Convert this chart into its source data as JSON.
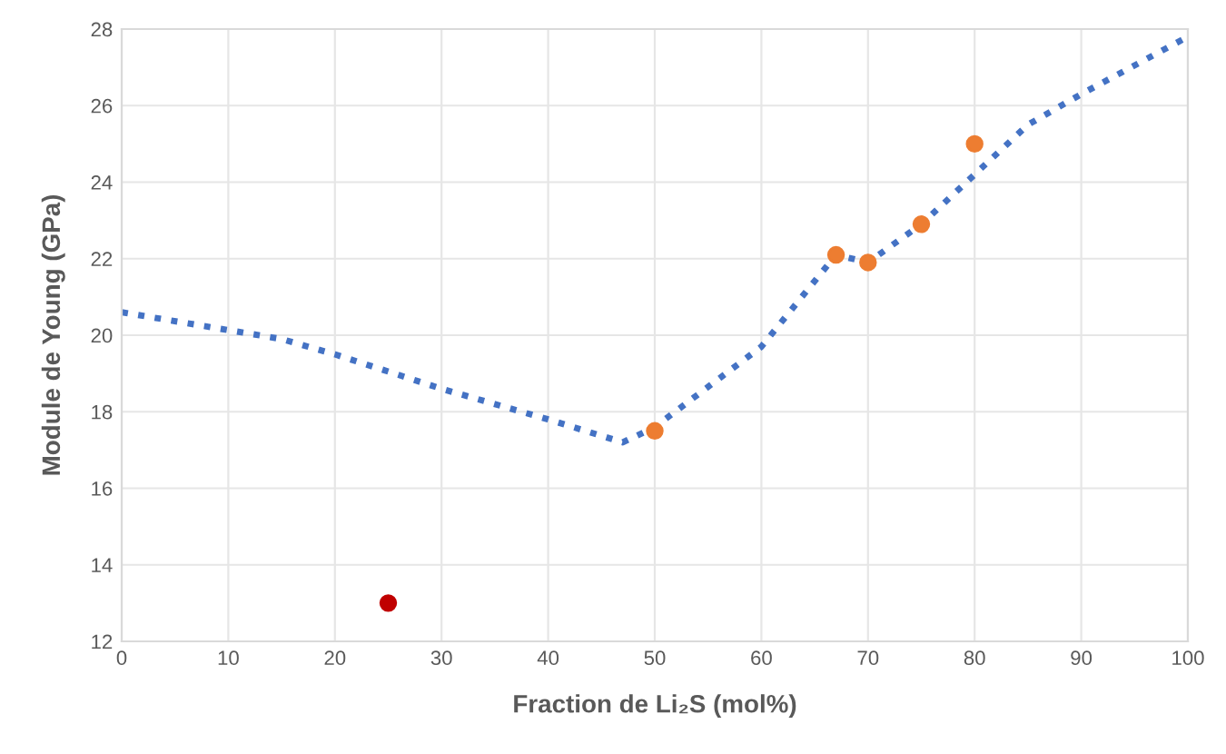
{
  "chart_data": {
    "type": "scatter",
    "xlabel": "Fraction de Li₂S (mol%)",
    "ylabel": "Module de Young (GPa)",
    "xlim": [
      0,
      100
    ],
    "xticks": [
      0,
      10,
      20,
      30,
      40,
      50,
      60,
      70,
      80,
      90,
      100
    ],
    "ylim": [
      12,
      28
    ],
    "yticks": [
      12,
      14,
      16,
      18,
      20,
      22,
      24,
      26,
      28
    ],
    "grid": true,
    "series": [
      {
        "type": "line",
        "color": "#4472c4",
        "line_style": "dotted",
        "marker": "none",
        "x": [
          0,
          15,
          20,
          30,
          40,
          47,
          50,
          60,
          67,
          70,
          75,
          80,
          85,
          90,
          100
        ],
        "values": [
          20.6,
          19.9,
          19.5,
          18.6,
          17.8,
          17.2,
          17.6,
          19.7,
          22.1,
          21.9,
          22.9,
          24.2,
          25.5,
          26.3,
          27.8
        ]
      },
      {
        "color": "#ed7d31",
        "marker": "circle",
        "x": [
          50,
          67,
          70,
          75,
          80
        ],
        "values": [
          17.5,
          22.1,
          21.9,
          22.9,
          25
        ]
      },
      {
        "color": "#c00000",
        "marker": "circle",
        "x": [
          25
        ],
        "values": [
          13
        ]
      }
    ]
  }
}
